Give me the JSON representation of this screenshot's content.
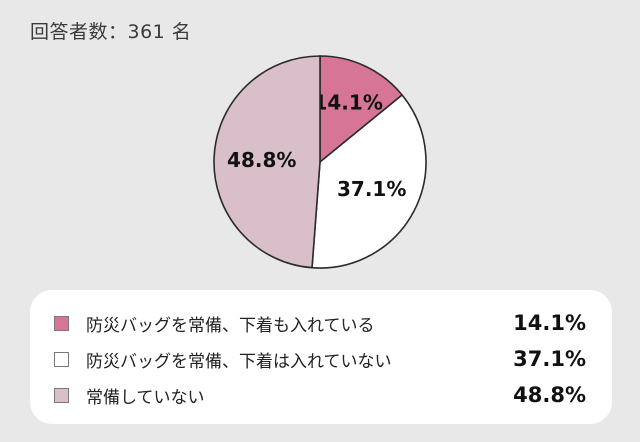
{
  "header": {
    "respondents": "回答者数：361 名"
  },
  "chart_data": {
    "type": "pie",
    "title": "",
    "slices": [
      {
        "label": "防災バッグを常備、下着も入れている",
        "value": 14.1,
        "display": "14.1%",
        "color": "#d67595"
      },
      {
        "label": "防災バッグを常備、下着は入れていない",
        "value": 37.1,
        "display": "37.1%",
        "color": "#ffffff"
      },
      {
        "label": "常備していない",
        "value": 48.8,
        "display": "48.8%",
        "color": "#d9bfc9"
      }
    ],
    "legend": "bottom"
  }
}
